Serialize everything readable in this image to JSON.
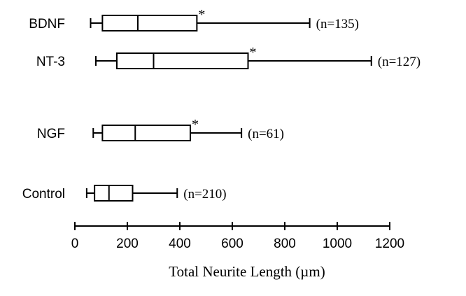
{
  "chart_data": {
    "type": "boxplot",
    "title": "",
    "xlabel": "Total Neurite Length (µm)",
    "ylabel": "",
    "xlim": [
      0,
      1200
    ],
    "xticks": [
      0,
      200,
      400,
      600,
      800,
      1000,
      1200
    ],
    "grid": false,
    "series": [
      {
        "name": "BDNF",
        "min": 60,
        "q1": 105,
        "median": 240,
        "q3": 465,
        "max": 895,
        "n_label": "(n=135)",
        "marker": "*"
      },
      {
        "name": "NT-3",
        "min": 80,
        "q1": 160,
        "median": 300,
        "q3": 660,
        "max": 1130,
        "n_label": "(n=127)",
        "marker": "*"
      },
      {
        "name": "NGF",
        "min": 70,
        "q1": 105,
        "median": 230,
        "q3": 440,
        "max": 635,
        "n_label": "(n=61)",
        "marker": "*"
      },
      {
        "name": "Control",
        "min": 45,
        "q1": 75,
        "median": 130,
        "q3": 220,
        "max": 390,
        "n_label": "(n=210)",
        "marker": ""
      }
    ]
  }
}
